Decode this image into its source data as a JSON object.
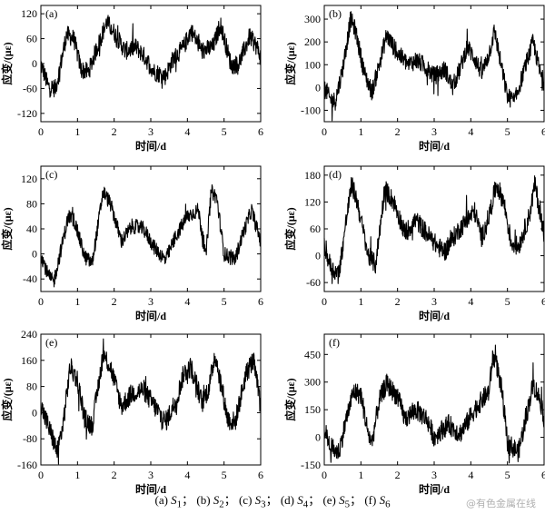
{
  "figure_caption": {
    "panels": [
      {
        "tag": "(a)",
        "sym": "S",
        "sub": "1",
        "sep": "；"
      },
      {
        "tag": "(b)",
        "sym": "S",
        "sub": "2",
        "sep": "；"
      },
      {
        "tag": "(c)",
        "sym": "S",
        "sub": "3",
        "sep": "；"
      },
      {
        "tag": "(d)",
        "sym": "S",
        "sub": "4",
        "sep": "；"
      },
      {
        "tag": "(e)",
        "sym": "S",
        "sub": "5",
        "sep": "；"
      },
      {
        "tag": "(f)",
        "sym": "S",
        "sub": "6",
        "sep": ""
      }
    ]
  },
  "watermark": "@有色金属在线",
  "chart_data": [
    {
      "type": "line",
      "panel_label": "(a)",
      "xlabel": "时间/d",
      "ylabel": "应变/(με)",
      "xlim": [
        0,
        6
      ],
      "ylim": [
        -140,
        140
      ],
      "xticks": [
        0,
        1,
        2,
        3,
        4,
        5,
        6
      ],
      "yticks": [
        -120,
        -60,
        0,
        60,
        120
      ],
      "series": [
        {
          "x": [
            0,
            0.2,
            0.4,
            0.5,
            0.7,
            0.9,
            1.1,
            1.3,
            1.5,
            1.8,
            2.0,
            2.3,
            2.6,
            2.8,
            3.1,
            3.4,
            3.6,
            3.9,
            4.1,
            4.4,
            4.7,
            4.9,
            5.2,
            5.4,
            5.7,
            5.9,
            6.0
          ],
          "y": [
            0,
            -55,
            -60,
            -20,
            70,
            60,
            -15,
            -20,
            30,
            100,
            75,
            30,
            40,
            20,
            -20,
            -30,
            10,
            40,
            80,
            30,
            40,
            95,
            -5,
            0,
            65,
            40,
            15
          ]
        }
      ],
      "noise": 22
    },
    {
      "type": "line",
      "panel_label": "(b)",
      "xlabel": "时间/d",
      "ylabel": "应变/(με)",
      "xlim": [
        0,
        6
      ],
      "ylim": [
        -150,
        360
      ],
      "xticks": [
        0,
        1,
        2,
        3,
        4,
        5,
        6
      ],
      "yticks": [
        -100,
        0,
        100,
        200,
        300
      ],
      "series": [
        {
          "x": [
            0,
            0.15,
            0.3,
            0.5,
            0.72,
            0.85,
            1.1,
            1.3,
            1.5,
            1.7,
            2.0,
            2.3,
            2.5,
            2.7,
            3.0,
            3.3,
            3.5,
            3.7,
            3.9,
            4.1,
            4.3,
            4.5,
            4.65,
            4.8,
            5.0,
            5.2,
            5.5,
            5.7,
            5.9,
            6.0
          ],
          "y": [
            10,
            -50,
            -60,
            80,
            300,
            250,
            60,
            -20,
            100,
            230,
            150,
            100,
            120,
            100,
            50,
            80,
            0,
            80,
            180,
            130,
            60,
            150,
            250,
            120,
            -40,
            -60,
            100,
            200,
            60,
            20
          ]
        }
      ],
      "noise": 40
    },
    {
      "type": "line",
      "panel_label": "(c)",
      "xlabel": "时间/d",
      "ylabel": "应变/(με)",
      "xlim": [
        0,
        6
      ],
      "ylim": [
        -60,
        140
      ],
      "xticks": [
        0,
        1,
        2,
        3,
        4,
        5,
        6
      ],
      "yticks": [
        -40,
        0,
        40,
        80,
        120
      ],
      "series": [
        {
          "x": [
            0,
            0.2,
            0.35,
            0.6,
            0.75,
            0.9,
            1.2,
            1.4,
            1.7,
            1.9,
            2.2,
            2.5,
            2.8,
            3.1,
            3.4,
            3.7,
            4.0,
            4.3,
            4.5,
            4.65,
            4.8,
            5.0,
            5.3,
            5.5,
            5.75,
            5.9,
            6.0
          ],
          "y": [
            0,
            -35,
            -45,
            20,
            60,
            55,
            -5,
            -15,
            100,
            80,
            20,
            45,
            40,
            10,
            -10,
            30,
            60,
            70,
            -5,
            100,
            90,
            0,
            -10,
            30,
            70,
            40,
            20
          ]
        }
      ],
      "noise": 12
    },
    {
      "type": "line",
      "panel_label": "(d)",
      "xlabel": "时间/d",
      "ylabel": "应变/(με)",
      "xlim": [
        0,
        6
      ],
      "ylim": [
        -80,
        200
      ],
      "xticks": [
        0,
        1,
        2,
        3,
        4,
        5,
        6
      ],
      "yticks": [
        -60,
        0,
        60,
        120,
        180
      ],
      "series": [
        {
          "x": [
            0,
            0.2,
            0.4,
            0.6,
            0.75,
            0.9,
            1.2,
            1.4,
            1.65,
            1.9,
            2.2,
            2.5,
            2.8,
            3.1,
            3.3,
            3.6,
            3.9,
            4.1,
            4.3,
            4.5,
            4.7,
            4.9,
            5.1,
            5.3,
            5.6,
            5.75,
            5.9,
            6.0
          ],
          "y": [
            20,
            -30,
            -40,
            80,
            160,
            120,
            0,
            -20,
            150,
            120,
            50,
            80,
            50,
            20,
            10,
            50,
            80,
            100,
            40,
            90,
            160,
            120,
            30,
            20,
            90,
            160,
            90,
            50
          ]
        }
      ],
      "noise": 22
    },
    {
      "type": "line",
      "panel_label": "(e)",
      "xlabel": "时间/d",
      "ylabel": "应变/(με)",
      "xlim": [
        0,
        6
      ],
      "ylim": [
        -160,
        240
      ],
      "xticks": [
        0,
        1,
        2,
        3,
        4,
        5,
        6
      ],
      "yticks": [
        -160,
        -80,
        0,
        80,
        160,
        240
      ],
      "series": [
        {
          "x": [
            0,
            0.2,
            0.45,
            0.6,
            0.8,
            1.0,
            1.2,
            1.4,
            1.7,
            1.9,
            2.2,
            2.5,
            2.8,
            3.1,
            3.4,
            3.7,
            3.9,
            4.1,
            4.4,
            4.6,
            4.75,
            4.9,
            5.1,
            5.3,
            5.6,
            5.8,
            6.0
          ],
          "y": [
            20,
            -40,
            -120,
            -40,
            140,
            100,
            -20,
            -40,
            180,
            140,
            20,
            60,
            70,
            20,
            -30,
            40,
            120,
            140,
            30,
            80,
            180,
            100,
            -20,
            -30,
            120,
            160,
            20
          ]
        }
      ],
      "noise": 32
    },
    {
      "type": "line",
      "panel_label": "(f)",
      "xlabel": "时间/d",
      "ylabel": "应变/(με)",
      "xlim": [
        0,
        6
      ],
      "ylim": [
        -150,
        560
      ],
      "xticks": [
        0,
        1,
        2,
        3,
        4,
        5,
        6
      ],
      "yticks": [
        -150,
        0,
        150,
        300,
        450
      ],
      "series": [
        {
          "x": [
            0,
            0.2,
            0.4,
            0.6,
            0.8,
            1.0,
            1.2,
            1.3,
            1.5,
            1.7,
            2.0,
            2.2,
            2.5,
            2.8,
            3.0,
            3.2,
            3.4,
            3.7,
            3.9,
            4.1,
            4.3,
            4.5,
            4.6,
            4.7,
            4.85,
            5.0,
            5.3,
            5.5,
            5.7,
            5.9,
            6.0
          ],
          "y": [
            40,
            -60,
            -80,
            100,
            250,
            230,
            20,
            -30,
            200,
            290,
            220,
            100,
            150,
            100,
            0,
            40,
            70,
            20,
            80,
            150,
            200,
            250,
            440,
            400,
            250,
            -30,
            -80,
            100,
            290,
            200,
            100
          ]
        }
      ],
      "noise": 55
    }
  ]
}
